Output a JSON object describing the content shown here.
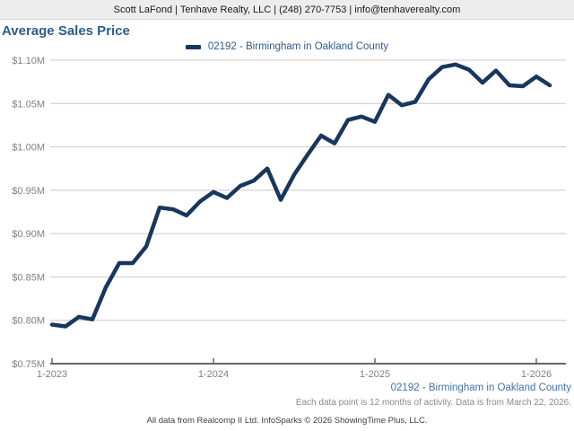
{
  "header": {
    "contact": "Scott LaFond | Tenhave Realty, LLC | (248) 270-7753 | info@tenhaverealty.com"
  },
  "title": "Average Sales Price",
  "legend": {
    "label": "02192 - Birmingham in Oakland County"
  },
  "footer": {
    "series_label": "02192 - Birmingham in Oakland County",
    "note": "Each data point is 12 months of activity. Data is from March 22, 2026.",
    "attribution": "All data from Realcomp II Ltd. InfoSparks © 2026 ShowingTime Plus, LLC."
  },
  "colors": {
    "line": "#17375e",
    "title_blue": "#2b5c8c",
    "link_blue": "#4074ad",
    "gridline": "#c8c8c8",
    "axis": "#666666",
    "tick_label": "#7f7f7f",
    "header_bg": "#ededed"
  },
  "chart_data": {
    "type": "line",
    "title": "Average Sales Price",
    "x": [
      "1-2023",
      "2-2023",
      "3-2023",
      "4-2023",
      "5-2023",
      "6-2023",
      "7-2023",
      "8-2023",
      "9-2023",
      "10-2023",
      "11-2023",
      "12-2023",
      "1-2024",
      "2-2024",
      "3-2024",
      "4-2024",
      "5-2024",
      "6-2024",
      "7-2024",
      "8-2024",
      "9-2024",
      "10-2024",
      "11-2024",
      "12-2024",
      "1-2025",
      "2-2025",
      "3-2025",
      "4-2025",
      "5-2025",
      "6-2025",
      "7-2025",
      "8-2025",
      "9-2025",
      "10-2025",
      "11-2025",
      "12-2025",
      "1-2026",
      "2-2026"
    ],
    "series": [
      {
        "name": "02192 - Birmingham in Oakland County",
        "color": "#17375e",
        "values": [
          0.795,
          0.793,
          0.804,
          0.801,
          0.838,
          0.866,
          0.866,
          0.885,
          0.93,
          0.928,
          0.921,
          0.937,
          0.948,
          0.941,
          0.955,
          0.961,
          0.975,
          0.939,
          0.968,
          0.991,
          1.013,
          1.004,
          1.031,
          1.035,
          1.029,
          1.06,
          1.048,
          1.052,
          1.078,
          1.092,
          1.095,
          1.089,
          1.074,
          1.088,
          1.071,
          1.07,
          1.081,
          1.071
        ]
      }
    ],
    "unit": "millions of $",
    "ylim": [
      0.75,
      1.1
    ],
    "y_ticks": [
      0.75,
      0.8,
      0.85,
      0.9,
      0.95,
      1.0,
      1.05,
      1.1
    ],
    "y_tick_labels": [
      "$0.75M",
      "$0.80M",
      "$0.85M",
      "$0.90M",
      "$0.95M",
      "$1.00M",
      "$1.05M",
      "$1.10M"
    ],
    "x_tick_positions": [
      0,
      12,
      24,
      36
    ],
    "x_tick_labels": [
      "1-2023",
      "1-2024",
      "1-2025",
      "1-2026"
    ],
    "grid": true,
    "legend_position": "top-center"
  }
}
